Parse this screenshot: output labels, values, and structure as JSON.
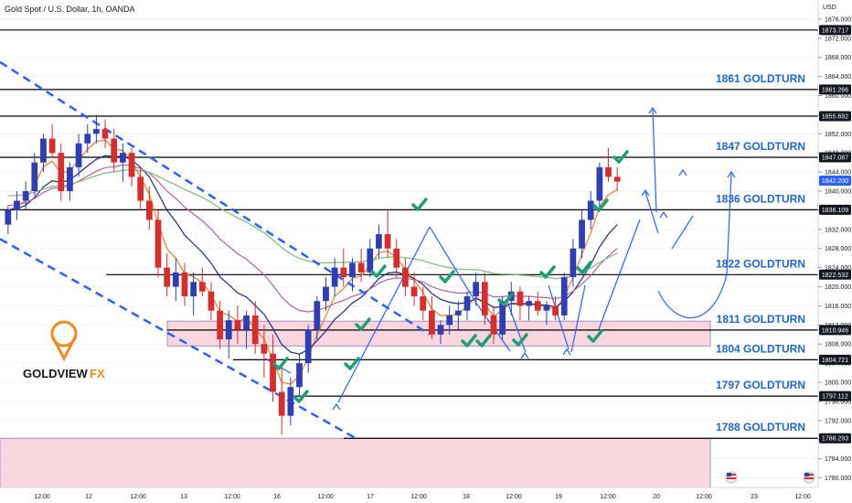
{
  "header": {
    "symbol": "Gold Spot / U.S. Dollar, 1h, OANDA",
    "currency": "USD"
  },
  "logo": {
    "word1": "GOLDVIEW",
    "word2": "FX"
  },
  "colors": {
    "up": "#2f3fb1",
    "down": "#d32f2f",
    "level_line": "#000000",
    "level_text": "#1e66d0",
    "zone_fill": "#f8c8d4",
    "ema_fast": "#f07a2a",
    "ema_mid": "#1b2a8c",
    "ema_slow": "#b85da8",
    "ema_long": "#7cba7c",
    "check": "#1f9d74",
    "trendline": "#2962ff"
  },
  "chart_data": {
    "type": "candlestick",
    "title": "Gold Spot / U.S. Dollar, 1h, OANDA",
    "y_axis": {
      "unit": "USD",
      "range": [
        1778,
        1880
      ],
      "ticks": [
        1780,
        1784,
        1788,
        1792,
        1796,
        1800,
        1804,
        1808,
        1812,
        1816,
        1820,
        1824,
        1828,
        1832,
        1836,
        1840,
        1844,
        1848,
        1852,
        1856,
        1860,
        1864,
        1868,
        1872,
        1876
      ]
    },
    "x_axis": {
      "ticks": [
        "12:00",
        "12",
        "12:00",
        "13",
        "12:00",
        "16",
        "12:00",
        "17",
        "12:00",
        "18",
        "12:00",
        "19",
        "12:00",
        "20",
        "12:00",
        "23",
        "12:00"
      ]
    },
    "price_labels": [
      "1873.717",
      "1861.266",
      "1855.692",
      "1847.087",
      "1842.200",
      "1836.109",
      "1822.532",
      "1810.946",
      "1804.721",
      "1797.112",
      "1788.293"
    ],
    "levels": [
      {
        "price": 1873.717,
        "label": "",
        "start": "left"
      },
      {
        "price": 1861.266,
        "label": "1861 GOLDTURN",
        "start": "left"
      },
      {
        "price": 1855.692,
        "label": "",
        "start": "left"
      },
      {
        "price": 1847.087,
        "label": "1847 GOLDTURN",
        "start": "left"
      },
      {
        "price": 1836.109,
        "label": "1836 GOLDTURN",
        "start": "left"
      },
      {
        "price": 1822.532,
        "label": "1822 GOLDTURN",
        "start": "mid"
      },
      {
        "price": 1810.946,
        "label": "1811 GOLDTURN",
        "start": "zone"
      },
      {
        "price": 1804.721,
        "label": "1804 GOLDTURN",
        "start": "mid2"
      },
      {
        "price": 1797.112,
        "label": "1797 GOLDTURN",
        "start": "mid3"
      },
      {
        "price": 1788.293,
        "label": "1788 GOLDTURN",
        "start": "mid4"
      }
    ],
    "current_price": 1842.2,
    "zones": [
      {
        "low": 1807.6,
        "high": 1812.8,
        "from_bar": 19,
        "to_bar": 79
      },
      {
        "low": 1778,
        "high": 1788.3,
        "from_bar": 0,
        "to_bar": 79
      }
    ],
    "candles": [
      [
        1833,
        1837,
        1831,
        1836
      ],
      [
        1836,
        1840,
        1834,
        1838
      ],
      [
        1838,
        1842,
        1836,
        1840
      ],
      [
        1840,
        1848,
        1839,
        1846
      ],
      [
        1846,
        1852,
        1844,
        1851
      ],
      [
        1851,
        1854,
        1847,
        1848
      ],
      [
        1848,
        1850,
        1838,
        1840
      ],
      [
        1840,
        1846,
        1838,
        1845
      ],
      [
        1845,
        1852,
        1843,
        1850
      ],
      [
        1850,
        1854,
        1848,
        1852
      ],
      [
        1852,
        1856,
        1850,
        1853
      ],
      [
        1853,
        1855,
        1849,
        1851
      ],
      [
        1851,
        1853,
        1844,
        1846
      ],
      [
        1846,
        1850,
        1842,
        1848
      ],
      [
        1848,
        1849,
        1841,
        1843
      ],
      [
        1843,
        1845,
        1836,
        1838
      ],
      [
        1838,
        1841,
        1832,
        1834
      ],
      [
        1834,
        1836,
        1822,
        1824
      ],
      [
        1824,
        1827,
        1818,
        1820
      ],
      [
        1820,
        1826,
        1817,
        1823
      ],
      [
        1823,
        1825,
        1816,
        1818
      ],
      [
        1818,
        1823,
        1814,
        1821
      ],
      [
        1821,
        1824,
        1818,
        1819
      ],
      [
        1819,
        1821,
        1813,
        1815
      ],
      [
        1815,
        1817,
        1807,
        1809
      ],
      [
        1809,
        1815,
        1805,
        1813
      ],
      [
        1813,
        1816,
        1808,
        1811
      ],
      [
        1811,
        1815,
        1807,
        1814
      ],
      [
        1814,
        1817,
        1806,
        1808
      ],
      [
        1808,
        1812,
        1801,
        1806
      ],
      [
        1806,
        1810,
        1796,
        1798
      ],
      [
        1798,
        1804,
        1789,
        1793
      ],
      [
        1793,
        1801,
        1791,
        1799
      ],
      [
        1799,
        1806,
        1797,
        1804
      ],
      [
        1804,
        1812,
        1802,
        1811
      ],
      [
        1811,
        1818,
        1809,
        1817
      ],
      [
        1817,
        1822,
        1815,
        1820
      ],
      [
        1820,
        1826,
        1818,
        1824
      ],
      [
        1824,
        1828,
        1820,
        1822
      ],
      [
        1822,
        1826,
        1819,
        1825
      ],
      [
        1825,
        1828,
        1821,
        1823
      ],
      [
        1823,
        1830,
        1822,
        1828
      ],
      [
        1828,
        1833,
        1826,
        1831
      ],
      [
        1831,
        1836,
        1826,
        1828
      ],
      [
        1828,
        1830,
        1822,
        1824
      ],
      [
        1824,
        1826,
        1818,
        1820
      ],
      [
        1820,
        1823,
        1816,
        1818
      ],
      [
        1818,
        1820,
        1813,
        1815
      ],
      [
        1815,
        1818,
        1809,
        1810
      ],
      [
        1810,
        1813,
        1808,
        1812
      ],
      [
        1812,
        1816,
        1810,
        1814
      ],
      [
        1814,
        1817,
        1811,
        1815
      ],
      [
        1815,
        1819,
        1813,
        1818
      ],
      [
        1818,
        1823,
        1816,
        1821
      ],
      [
        1821,
        1823,
        1812,
        1814
      ],
      [
        1814,
        1816,
        1808,
        1810
      ],
      [
        1810,
        1818,
        1809,
        1817
      ],
      [
        1817,
        1821,
        1814,
        1819
      ],
      [
        1819,
        1820,
        1813,
        1816
      ],
      [
        1816,
        1818,
        1813,
        1817
      ],
      [
        1817,
        1819,
        1814,
        1815
      ],
      [
        1815,
        1817,
        1812,
        1816
      ],
      [
        1816,
        1818,
        1813,
        1814
      ],
      [
        1814,
        1823,
        1813,
        1822
      ],
      [
        1822,
        1830,
        1820,
        1828
      ],
      [
        1828,
        1836,
        1826,
        1834
      ],
      [
        1834,
        1840,
        1832,
        1838
      ],
      [
        1838,
        1846,
        1836,
        1845
      ],
      [
        1845,
        1849,
        1842,
        1843
      ],
      [
        1843,
        1845,
        1840,
        1842
      ]
    ],
    "annotations": [
      "check marks at swing points",
      "projected path arrows toward 1861 and 1847"
    ]
  }
}
